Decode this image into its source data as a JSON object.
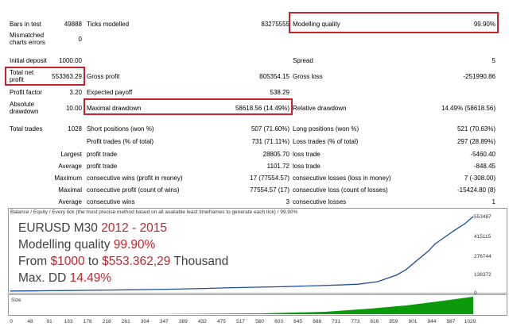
{
  "report": {
    "bars_in_test": {
      "label": "Bars in test",
      "value": "49888"
    },
    "ticks_modelled": {
      "label": "Ticks modelled",
      "value": "83275555"
    },
    "modelling_quality": {
      "label": "Modelling quality",
      "value": "99.90%"
    },
    "mismatched": {
      "label": "Mismatched charts errors",
      "value": "0"
    },
    "initial_deposit": {
      "label": "Initial deposit",
      "value": "1000.00"
    },
    "spread": {
      "label": "Spread",
      "value": "5"
    },
    "total_net_profit": {
      "label": "Total net profit",
      "value": "553363.29"
    },
    "gross_profit": {
      "label": "Gross profit",
      "value": "805354.15"
    },
    "gross_loss": {
      "label": "Gross loss",
      "value": "-251990.86"
    },
    "profit_factor": {
      "label": "Profit factor",
      "value": "3.20"
    },
    "expected_payoff": {
      "label": "Expected payoff",
      "value": "538.29"
    },
    "absolute_drawdown": {
      "label": "Absolute drawdown",
      "value": "10.00"
    },
    "maximal_drawdown": {
      "label": "Maximal drawdown",
      "value": "58618.56 (14.49%)"
    },
    "relative_drawdown": {
      "label": "Relative drawdown",
      "value": "14.49% (58618.56)"
    },
    "total_trades": {
      "label": "Total trades",
      "value": "1028"
    },
    "short_positions": {
      "label": "Short positions (won %)",
      "value": "507 (71.60%)"
    },
    "long_positions": {
      "label": "Long positions (won %)",
      "value": "521 (70.63%)"
    },
    "profit_trades": {
      "label": "Profit trades (% of total)",
      "value": "731 (71.11%)"
    },
    "loss_trades": {
      "label": "Loss trades (% of total)",
      "value": "297 (28.89%)"
    },
    "largest": {
      "label": "Largest",
      "profit_label": "profit trade",
      "profit_value": "28805.70",
      "loss_label": "loss trade",
      "loss_value": "-5460.40"
    },
    "average": {
      "label": "Average",
      "profit_label": "profit trade",
      "profit_value": "1101.72",
      "loss_label": "loss trade",
      "loss_value": "-848.45"
    },
    "maximum": {
      "label": "Maximum",
      "wins_label": "consecutive wins (profit in money)",
      "wins_value": "17 (77554.57)",
      "losses_label": "consecutive losses (loss in money)",
      "losses_value": "7 (-308.00)"
    },
    "maximal": {
      "label": "Maximal",
      "wins_label": "consecutive profit (count of wins)",
      "wins_value": "77554.57 (17)",
      "losses_label": "consecutive loss (count of losses)",
      "losses_value": "-15424.80 (8)"
    },
    "average_consec": {
      "label": "Average",
      "wins_label": "consecutive wins",
      "wins_value": "3",
      "losses_label": "consecutive losses",
      "losses_value": "1"
    }
  },
  "chart": {
    "header": "Balance / Equity / Every tick (the most precise method based on all available least timeframes to generate each tick) / 99.90%",
    "size_label": "Size",
    "overlay": {
      "line1_a": "EURUSD M30 ",
      "line1_b": "2012 - 2015",
      "line2_a": "Modelling quality ",
      "line2_b": "99.90%",
      "line3_a": "From ",
      "line3_b": "$1000",
      "line3_c": " to ",
      "line3_d": "$553.362,29",
      "line3_e": " Thousand",
      "line4_a": "Max. DD  ",
      "line4_b": "14.49%"
    },
    "y_ticks": [
      "553487",
      "415115",
      "276744",
      "138372",
      "0"
    ],
    "x_ticks": [
      "0",
      "48",
      "91",
      "133",
      "176",
      "218",
      "261",
      "304",
      "347",
      "389",
      "432",
      "475",
      "517",
      "560",
      "603",
      "645",
      "688",
      "731",
      "773",
      "816",
      "859",
      "901",
      "944",
      "987",
      "1029"
    ],
    "colors": {
      "balance": "#1f4e9c",
      "volume": "#0a9a0a",
      "highlight": "#c8232c"
    }
  },
  "chart_data": {
    "type": "line",
    "title": "",
    "xlabel": "",
    "ylabel": "",
    "ylim": [
      0,
      553487
    ],
    "xlim": [
      0,
      1029
    ],
    "series": [
      {
        "x": [
          0,
          48,
          91,
          133,
          176,
          218,
          261,
          304,
          347,
          389,
          432,
          475,
          517,
          560,
          603,
          645,
          688,
          731,
          773,
          816,
          859,
          880,
          901,
          930,
          944,
          965,
          987,
          1010,
          1029
        ],
        "values": [
          1000,
          2000,
          3500,
          5000,
          6500,
          8000,
          10000,
          12000,
          14000,
          17000,
          20000,
          24000,
          27000,
          30000,
          33000,
          37000,
          41000,
          46000,
          52000,
          70000,
          120000,
          160000,
          220000,
          300000,
          350000,
          400000,
          450000,
          500000,
          553363
        ]
      }
    ]
  }
}
